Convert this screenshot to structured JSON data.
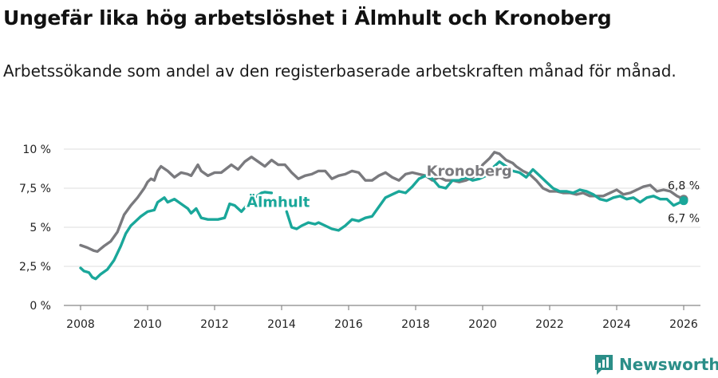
{
  "title": "Ungefär lika hög arbetslöshet i Älmhult och Kronoberg",
  "subtitle": "Arbetssökande som andel av den registerbaserade arbetskraften månad för månad.",
  "brand": {
    "name": "Newsworthy",
    "icon": "newsworthy-logo-icon"
  },
  "colors": {
    "kronoberg": "#7a7a7e",
    "almhult": "#1aa79a",
    "grid": "#dddddd",
    "axis": "#888888"
  },
  "chart_data": {
    "type": "line",
    "title": "Ungefär lika hög arbetslöshet i Älmhult och Kronoberg",
    "xlabel": "",
    "ylabel": "",
    "xlim": [
      2007.5,
      2026.5
    ],
    "ylim": [
      0,
      10
    ],
    "grid": true,
    "x_ticks": [
      2008,
      2010,
      2012,
      2014,
      2016,
      2018,
      2020,
      2022,
      2024,
      2026
    ],
    "x_tick_labels": [
      "2008",
      "2010",
      "2012",
      "2014",
      "2016",
      "2018",
      "2020",
      "2022",
      "2024",
      "2026"
    ],
    "y_ticks": [
      0,
      2.5,
      5,
      7.5,
      10
    ],
    "y_tick_labels": [
      "0 %",
      "2,5 %",
      "5 %",
      "7,5 %",
      "10 %"
    ],
    "series": [
      {
        "name": "Kronoberg",
        "label": "Kronoberg",
        "end_label": "6,8 %",
        "points": [
          [
            2008.0,
            3.85
          ],
          [
            2008.2,
            3.7
          ],
          [
            2008.4,
            3.5
          ],
          [
            2008.5,
            3.45
          ],
          [
            2008.7,
            3.8
          ],
          [
            2008.9,
            4.1
          ],
          [
            2009.1,
            4.7
          ],
          [
            2009.3,
            5.8
          ],
          [
            2009.5,
            6.4
          ],
          [
            2009.7,
            6.9
          ],
          [
            2009.9,
            7.5
          ],
          [
            2010.0,
            7.9
          ],
          [
            2010.1,
            8.1
          ],
          [
            2010.2,
            8.0
          ],
          [
            2010.3,
            8.6
          ],
          [
            2010.4,
            8.9
          ],
          [
            2010.6,
            8.6
          ],
          [
            2010.8,
            8.2
          ],
          [
            2011.0,
            8.5
          ],
          [
            2011.2,
            8.4
          ],
          [
            2011.3,
            8.3
          ],
          [
            2011.5,
            9.0
          ],
          [
            2011.6,
            8.6
          ],
          [
            2011.8,
            8.3
          ],
          [
            2012.0,
            8.5
          ],
          [
            2012.2,
            8.5
          ],
          [
            2012.5,
            9.0
          ],
          [
            2012.7,
            8.7
          ],
          [
            2012.9,
            9.2
          ],
          [
            2013.1,
            9.5
          ],
          [
            2013.3,
            9.2
          ],
          [
            2013.5,
            8.9
          ],
          [
            2013.7,
            9.3
          ],
          [
            2013.9,
            9.0
          ],
          [
            2014.1,
            9.0
          ],
          [
            2014.3,
            8.5
          ],
          [
            2014.5,
            8.1
          ],
          [
            2014.7,
            8.3
          ],
          [
            2014.9,
            8.4
          ],
          [
            2015.1,
            8.6
          ],
          [
            2015.3,
            8.6
          ],
          [
            2015.5,
            8.1
          ],
          [
            2015.7,
            8.3
          ],
          [
            2015.9,
            8.4
          ],
          [
            2016.1,
            8.6
          ],
          [
            2016.3,
            8.5
          ],
          [
            2016.5,
            8.0
          ],
          [
            2016.7,
            8.0
          ],
          [
            2016.9,
            8.3
          ],
          [
            2017.1,
            8.5
          ],
          [
            2017.3,
            8.2
          ],
          [
            2017.5,
            8.0
          ],
          [
            2017.7,
            8.4
          ],
          [
            2017.9,
            8.5
          ],
          [
            2018.1,
            8.4
          ],
          [
            2018.3,
            8.3
          ],
          [
            2018.5,
            8.0
          ],
          [
            2018.7,
            8.2
          ],
          [
            2018.9,
            8.0
          ],
          [
            2019.1,
            8.0
          ],
          [
            2019.3,
            7.9
          ],
          [
            2019.5,
            8.0
          ],
          [
            2019.7,
            8.2
          ],
          [
            2019.9,
            8.5
          ],
          [
            2020.0,
            9.0
          ],
          [
            2020.2,
            9.4
          ],
          [
            2020.35,
            9.8
          ],
          [
            2020.5,
            9.7
          ],
          [
            2020.7,
            9.3
          ],
          [
            2020.9,
            9.1
          ],
          [
            2021.0,
            8.9
          ],
          [
            2021.2,
            8.6
          ],
          [
            2021.4,
            8.4
          ],
          [
            2021.6,
            8.0
          ],
          [
            2021.8,
            7.5
          ],
          [
            2022.0,
            7.3
          ],
          [
            2022.2,
            7.3
          ],
          [
            2022.4,
            7.2
          ],
          [
            2022.6,
            7.2
          ],
          [
            2022.8,
            7.1
          ],
          [
            2023.0,
            7.2
          ],
          [
            2023.2,
            7.0
          ],
          [
            2023.4,
            7.0
          ],
          [
            2023.6,
            7.0
          ],
          [
            2023.8,
            7.2
          ],
          [
            2024.0,
            7.4
          ],
          [
            2024.2,
            7.1
          ],
          [
            2024.4,
            7.2
          ],
          [
            2024.6,
            7.4
          ],
          [
            2024.8,
            7.6
          ],
          [
            2025.0,
            7.7
          ],
          [
            2025.2,
            7.3
          ],
          [
            2025.4,
            7.4
          ],
          [
            2025.6,
            7.3
          ],
          [
            2025.8,
            7.0
          ],
          [
            2026.0,
            6.8
          ]
        ]
      },
      {
        "name": "Älmhult",
        "label": "Älmhult",
        "end_label": "6,7 %",
        "points": [
          [
            2008.0,
            2.4
          ],
          [
            2008.1,
            2.2
          ],
          [
            2008.25,
            2.1
          ],
          [
            2008.35,
            1.8
          ],
          [
            2008.45,
            1.7
          ],
          [
            2008.6,
            2.0
          ],
          [
            2008.8,
            2.3
          ],
          [
            2009.0,
            2.9
          ],
          [
            2009.2,
            3.8
          ],
          [
            2009.35,
            4.6
          ],
          [
            2009.5,
            5.1
          ],
          [
            2009.6,
            5.3
          ],
          [
            2009.8,
            5.7
          ],
          [
            2010.0,
            6.0
          ],
          [
            2010.2,
            6.1
          ],
          [
            2010.3,
            6.6
          ],
          [
            2010.5,
            6.9
          ],
          [
            2010.6,
            6.6
          ],
          [
            2010.8,
            6.8
          ],
          [
            2011.0,
            6.5
          ],
          [
            2011.2,
            6.2
          ],
          [
            2011.3,
            5.9
          ],
          [
            2011.45,
            6.2
          ],
          [
            2011.6,
            5.6
          ],
          [
            2011.8,
            5.5
          ],
          [
            2012.1,
            5.5
          ],
          [
            2012.3,
            5.6
          ],
          [
            2012.45,
            6.5
          ],
          [
            2012.6,
            6.4
          ],
          [
            2012.8,
            6.0
          ],
          [
            2013.0,
            6.5
          ],
          [
            2013.2,
            6.9
          ],
          [
            2013.4,
            7.2
          ],
          [
            2013.5,
            7.25
          ],
          [
            2013.7,
            7.2
          ]
        ]
      },
      {
        "name": "Älmhult (2014–)",
        "points": [
          [
            2014.15,
            6.0
          ],
          [
            2014.3,
            5.0
          ],
          [
            2014.45,
            4.9
          ],
          [
            2014.6,
            5.1
          ],
          [
            2014.8,
            5.3
          ],
          [
            2015.0,
            5.2
          ],
          [
            2015.1,
            5.3
          ],
          [
            2015.3,
            5.1
          ],
          [
            2015.5,
            4.9
          ],
          [
            2015.7,
            4.8
          ],
          [
            2015.9,
            5.1
          ],
          [
            2016.1,
            5.5
          ],
          [
            2016.3,
            5.4
          ],
          [
            2016.5,
            5.6
          ],
          [
            2016.7,
            5.7
          ],
          [
            2016.9,
            6.3
          ],
          [
            2017.1,
            6.9
          ],
          [
            2017.3,
            7.1
          ],
          [
            2017.5,
            7.3
          ],
          [
            2017.7,
            7.2
          ],
          [
            2017.9,
            7.6
          ],
          [
            2018.1,
            8.1
          ],
          [
            2018.3,
            8.3
          ],
          [
            2018.5,
            8.1
          ],
          [
            2018.7,
            7.6
          ],
          [
            2018.9,
            7.5
          ],
          [
            2019.1,
            8.0
          ],
          [
            2019.3,
            8.0
          ],
          [
            2019.5,
            8.2
          ],
          [
            2019.7,
            8.0
          ],
          [
            2019.9,
            8.1
          ],
          [
            2020.1,
            8.3
          ],
          [
            2020.3,
            8.8
          ],
          [
            2020.5,
            9.2
          ],
          [
            2020.7,
            8.9
          ],
          [
            2020.9,
            8.6
          ],
          [
            2021.1,
            8.5
          ],
          [
            2021.3,
            8.2
          ],
          [
            2021.5,
            8.7
          ],
          [
            2021.7,
            8.3
          ],
          [
            2021.9,
            7.9
          ],
          [
            2022.1,
            7.5
          ],
          [
            2022.3,
            7.3
          ],
          [
            2022.5,
            7.3
          ],
          [
            2022.7,
            7.2
          ],
          [
            2022.9,
            7.4
          ],
          [
            2023.1,
            7.3
          ],
          [
            2023.3,
            7.1
          ],
          [
            2023.5,
            6.8
          ],
          [
            2023.7,
            6.7
          ],
          [
            2023.9,
            6.9
          ],
          [
            2024.1,
            7.0
          ],
          [
            2024.3,
            6.8
          ],
          [
            2024.5,
            6.9
          ],
          [
            2024.7,
            6.6
          ],
          [
            2024.9,
            6.9
          ],
          [
            2025.1,
            7.0
          ],
          [
            2025.3,
            6.8
          ],
          [
            2025.5,
            6.8
          ],
          [
            2025.7,
            6.4
          ],
          [
            2025.9,
            6.6
          ],
          [
            2026.0,
            6.7
          ]
        ]
      }
    ]
  }
}
